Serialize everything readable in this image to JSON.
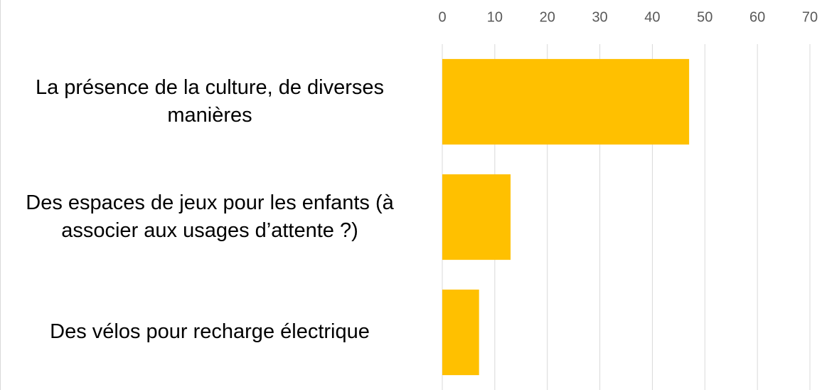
{
  "chart_data": {
    "type": "bar",
    "orientation": "horizontal",
    "categories": [
      "La présence de la culture, de diverses manières",
      "Des espaces de jeux pour les enfants (à associer aux usages d’attente ?)",
      "Des vélos pour recharge électrique"
    ],
    "values": [
      47,
      13,
      7
    ],
    "color": "#ffc000",
    "xlim": [
      0,
      70
    ],
    "xticks": [
      0,
      10,
      20,
      30,
      40,
      50,
      60,
      70
    ],
    "grid": true
  }
}
